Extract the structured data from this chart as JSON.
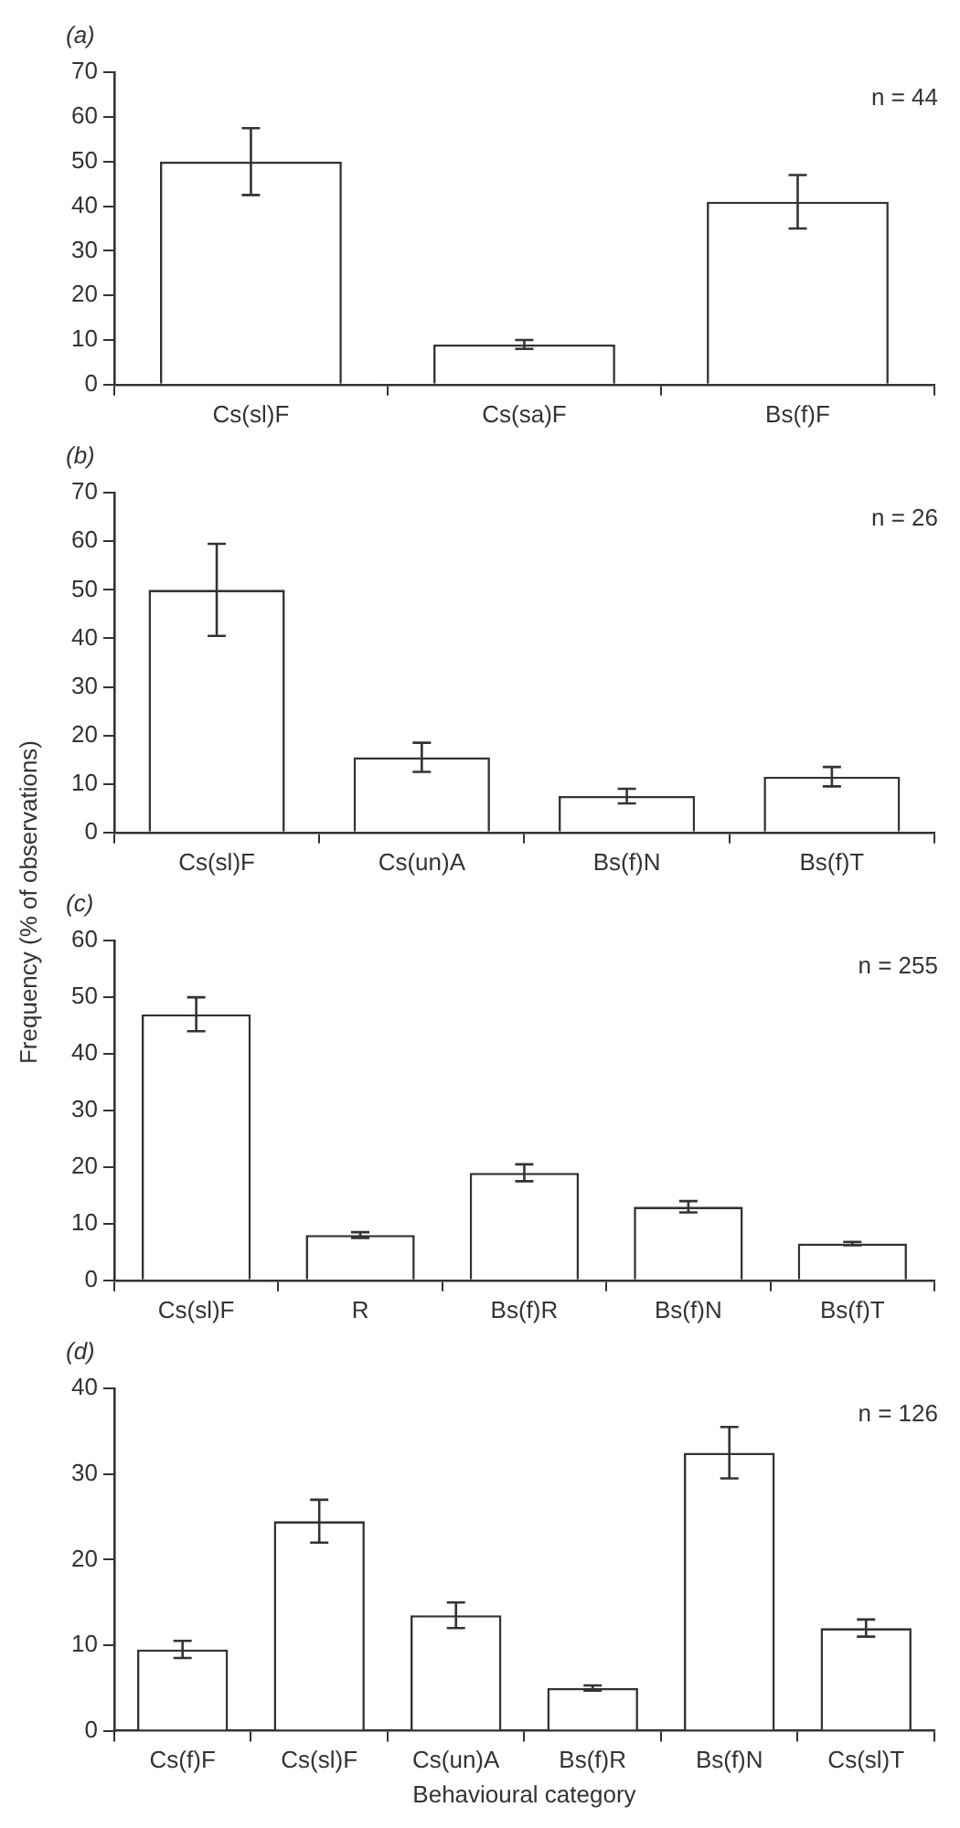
{
  "chart_data": [
    {
      "type": "bar",
      "title": "(a)",
      "categories": [
        "Cs(sl)F",
        "Cs(sa)F",
        "Bs(f)F"
      ],
      "values": [
        50,
        9,
        41
      ],
      "errors": [
        7.5,
        1,
        6
      ],
      "color": "#ffffff",
      "ylim": [
        0,
        70
      ],
      "yticks": [
        0,
        10,
        20,
        30,
        40,
        50,
        60,
        70
      ],
      "grid": false,
      "legend": false,
      "annotations": [
        "n = 44"
      ]
    },
    {
      "type": "bar",
      "title": "(b)",
      "ylabel": "Frequency (% of observations)",
      "categories": [
        "Cs(sl)F",
        "Cs(un)A",
        "Bs(f)N",
        "Bs(f)T"
      ],
      "values": [
        50,
        15.5,
        7.5,
        11.5
      ],
      "errors": [
        9.5,
        3,
        1.5,
        2
      ],
      "color": "#ffffff",
      "ylim": [
        0,
        70
      ],
      "yticks": [
        0,
        10,
        20,
        30,
        40,
        50,
        60,
        70
      ],
      "grid": false,
      "legend": false,
      "annotations": [
        "n = 26"
      ]
    },
    {
      "type": "bar",
      "title": "(c)",
      "categories": [
        "Cs(sl)F",
        "R",
        "Bs(f)R",
        "Bs(f)N",
        "Bs(f)T"
      ],
      "values": [
        47,
        8,
        19,
        13,
        6.5
      ],
      "errors": [
        3,
        0.5,
        1.5,
        1,
        0.3
      ],
      "color": "#ffffff",
      "ylim": [
        0,
        60
      ],
      "yticks": [
        0,
        10,
        20,
        30,
        40,
        50,
        60
      ],
      "grid": false,
      "legend": false,
      "annotations": [
        "n = 255"
      ]
    },
    {
      "type": "bar",
      "title": "(d)",
      "xlabel": "Behavioural category",
      "categories": [
        "Cs(f)F",
        "Cs(sl)F",
        "Cs(un)A",
        "Bs(f)R",
        "Bs(f)N",
        "Cs(sl)T"
      ],
      "values": [
        9.5,
        24.5,
        13.5,
        5,
        32.5,
        12
      ],
      "errors": [
        1,
        2.5,
        1.5,
        0.3,
        3,
        1
      ],
      "color": "#ffffff",
      "ylim": [
        0,
        40
      ],
      "yticks": [
        0,
        10,
        20,
        30,
        40
      ],
      "grid": false,
      "legend": false,
      "annotations": [
        "n = 126"
      ]
    }
  ]
}
